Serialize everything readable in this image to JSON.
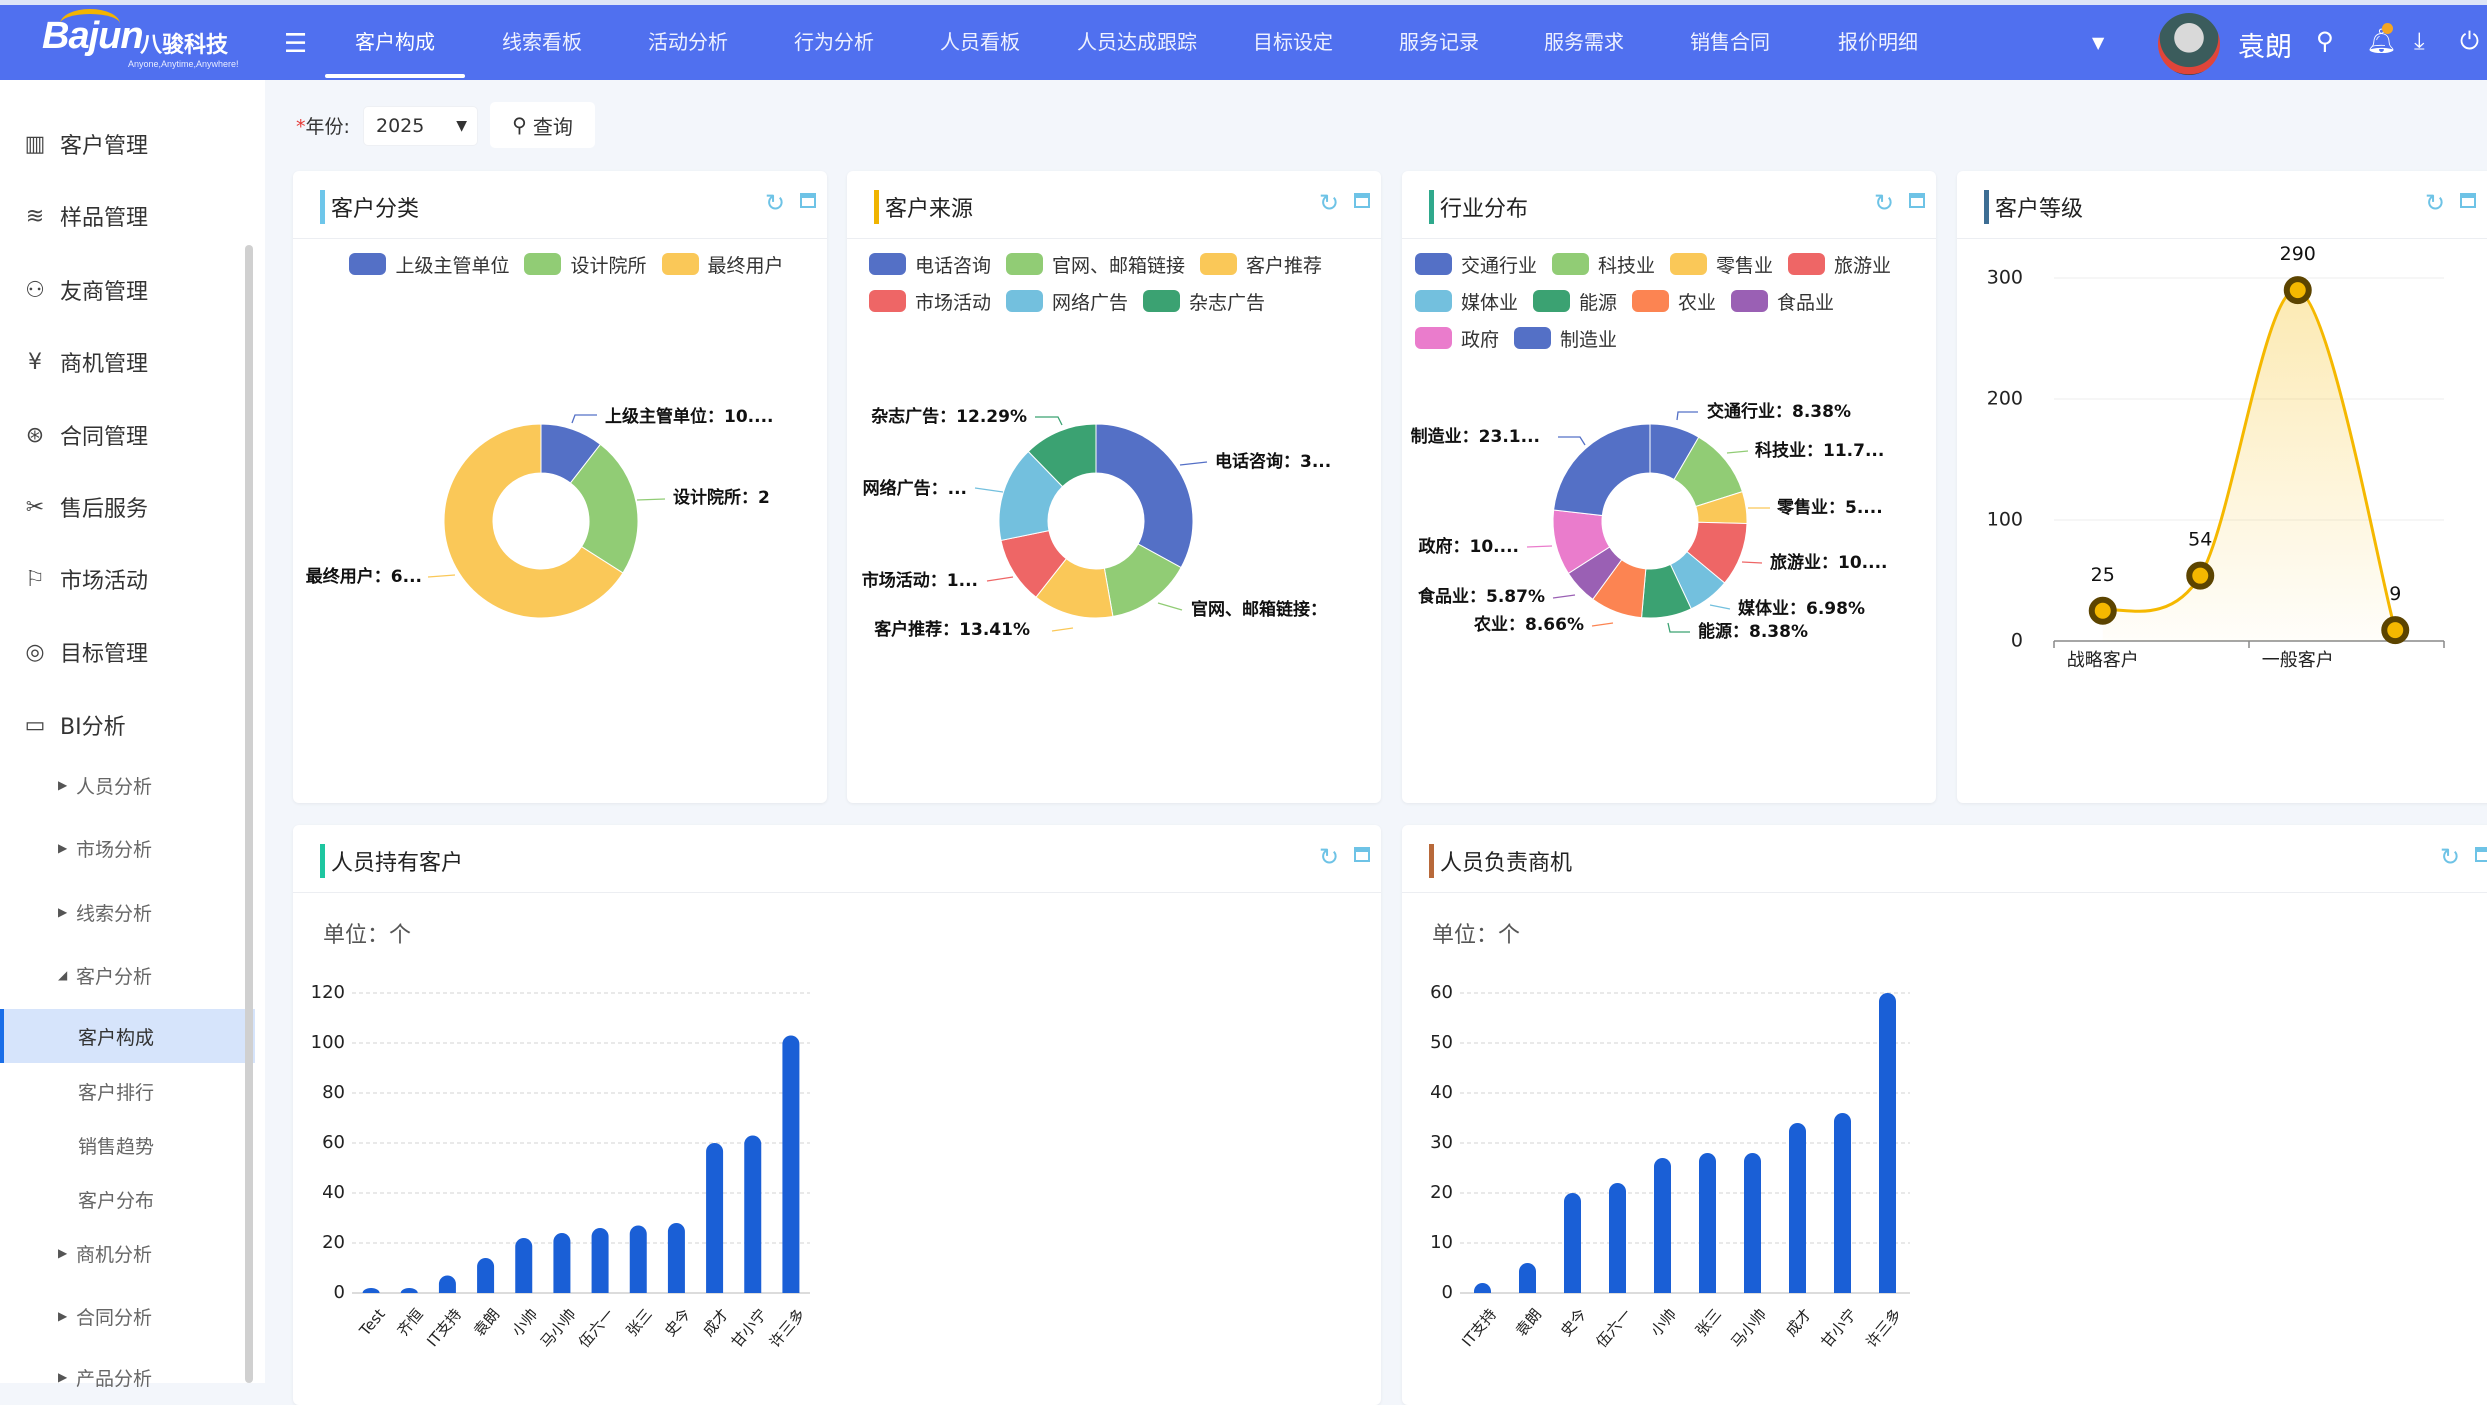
{
  "header": {
    "logo_en": "Bajun",
    "logo_cn": "八骏科技",
    "logo_slogan": "Anyone,Anytime,Anywhere!",
    "nav": [
      "客户构成",
      "线索看板",
      "活动分析",
      "行为分析",
      "人员看板",
      "人员达成跟踪",
      "目标设定",
      "服务记录",
      "服务需求",
      "销售合同",
      "报价明细"
    ],
    "active_nav": "客户构成",
    "more_icon": "caret-down-icon",
    "user_name": "袁朗",
    "brand_color": "#5070ef"
  },
  "sidebar": {
    "items": [
      {
        "label": "客户管理",
        "icon": "building-icon"
      },
      {
        "label": "样品管理",
        "icon": "layers-icon"
      },
      {
        "label": "友商管理",
        "icon": "user-vs-icon"
      },
      {
        "label": "商机管理",
        "icon": "yen-receipt-icon"
      },
      {
        "label": "合同管理",
        "icon": "yen-circle-icon"
      },
      {
        "label": "售后服务",
        "icon": "tools-icon"
      },
      {
        "label": "市场活动",
        "icon": "flag-icon"
      },
      {
        "label": "目标管理",
        "icon": "target-icon"
      },
      {
        "label": "BI分析",
        "icon": "monitor-chart-icon"
      }
    ],
    "bi_children": [
      "人员分析",
      "市场分析",
      "线索分析",
      "客户分析"
    ],
    "customer_children": [
      "客户构成",
      "客户排行",
      "销售趋势",
      "客户分布"
    ],
    "more_children": [
      "商机分析",
      "合同分析",
      "产品分析"
    ],
    "active": "客户构成"
  },
  "filter": {
    "required_mark": "*",
    "year_label": "年份:",
    "year_value": "2025",
    "query_label": "查询"
  },
  "chart_data": [
    {
      "type": "pie",
      "title": "客户分类",
      "accent": "#6ec6ea",
      "categories": [
        "上级主管单位",
        "设计院所",
        "最终用户"
      ],
      "values_percent": [
        10.5,
        23.5,
        66.0
      ],
      "labels": [
        "上级主管单位：10....",
        "设计院所：2",
        "最终用户：6..."
      ],
      "colors": [
        "#5470c6",
        "#91cc75",
        "#fac858"
      ],
      "legend": "top"
    },
    {
      "type": "pie",
      "title": "客户来源",
      "accent": "#f0b400",
      "categories": [
        "电话咨询",
        "官网、邮箱链接",
        "客户推荐",
        "市场活动",
        "网络广告",
        "杂志广告"
      ],
      "values_percent": [
        32.96,
        14.25,
        13.41,
        11.17,
        15.92,
        12.29
      ],
      "labels": [
        "电话咨询：3...",
        "官网、邮箱链接：",
        "客户推荐：13.41%",
        "市场活动：1...",
        "网络广告：...",
        "杂志广告：12.29%"
      ],
      "colors": [
        "#5470c6",
        "#91cc75",
        "#fac858",
        "#ee6666",
        "#73c0de",
        "#3ba272"
      ],
      "legend": "top"
    },
    {
      "type": "pie",
      "title": "行业分布",
      "accent": "#2fa98c",
      "categories": [
        "交通行业",
        "科技业",
        "零售业",
        "旅游业",
        "媒体业",
        "能源",
        "农业",
        "食品业",
        "政府",
        "制造业"
      ],
      "values_percent": [
        8.38,
        11.73,
        5.31,
        10.61,
        6.98,
        8.38,
        8.66,
        5.87,
        10.89,
        23.19
      ],
      "labels": [
        "交通行业：8.38%",
        "科技业：11.7...",
        "零售业：5....",
        "旅游业：10....",
        "媒体业：6.98%",
        "能源：8.38%",
        "农业：8.66%",
        "食品业：5.87%",
        "政府：10....",
        "制造业：23.1..."
      ],
      "colors": [
        "#5470c6",
        "#91cc75",
        "#fac858",
        "#ee6666",
        "#73c0de",
        "#3ba272",
        "#fc8452",
        "#9a60b4",
        "#ea7ccc",
        "#5470c6"
      ],
      "legend": "top"
    },
    {
      "type": "line",
      "title": "客户等级",
      "accent": "#3d6e94",
      "x_labels": [
        "战略客户",
        null,
        "一般客户",
        null
      ],
      "values": [
        25,
        54,
        290,
        9
      ],
      "ylim": [
        0,
        300
      ],
      "yticks": [
        0,
        100,
        200,
        300
      ],
      "smooth": true,
      "area": true,
      "grid": true,
      "color": "#f5b800"
    },
    {
      "type": "bar",
      "title": "人员持有客户",
      "accent": "#1ec6a0",
      "unit": "单位：个",
      "categories": [
        "Test",
        "齐恒",
        "IT支持",
        "袁朗",
        "小帅",
        "马小帅",
        "伍六一",
        "张三",
        "史今",
        "成才",
        "甘小宁",
        "许三多"
      ],
      "values": [
        2,
        2,
        7,
        14,
        22,
        24,
        26,
        27,
        28,
        60,
        63,
        103
      ],
      "ylim": [
        0,
        120
      ],
      "yticks": [
        0,
        20,
        40,
        60,
        80,
        100,
        120
      ],
      "grid": true,
      "color": "#1a5fd6"
    },
    {
      "type": "bar",
      "title": "人员负责商机",
      "accent": "#b8693a",
      "unit": "单位：个",
      "categories": [
        "IT支持",
        "袁朗",
        "史今",
        "伍六一",
        "小帅",
        "张三",
        "马小帅",
        "成才",
        "甘小宁",
        "许三多"
      ],
      "values": [
        2,
        6,
        20,
        22,
        27,
        28,
        28,
        34,
        36,
        60
      ],
      "ylim": [
        0,
        60
      ],
      "yticks": [
        0,
        10,
        20,
        30,
        40,
        50,
        60
      ],
      "grid": true,
      "color": "#1a5fd6"
    }
  ]
}
